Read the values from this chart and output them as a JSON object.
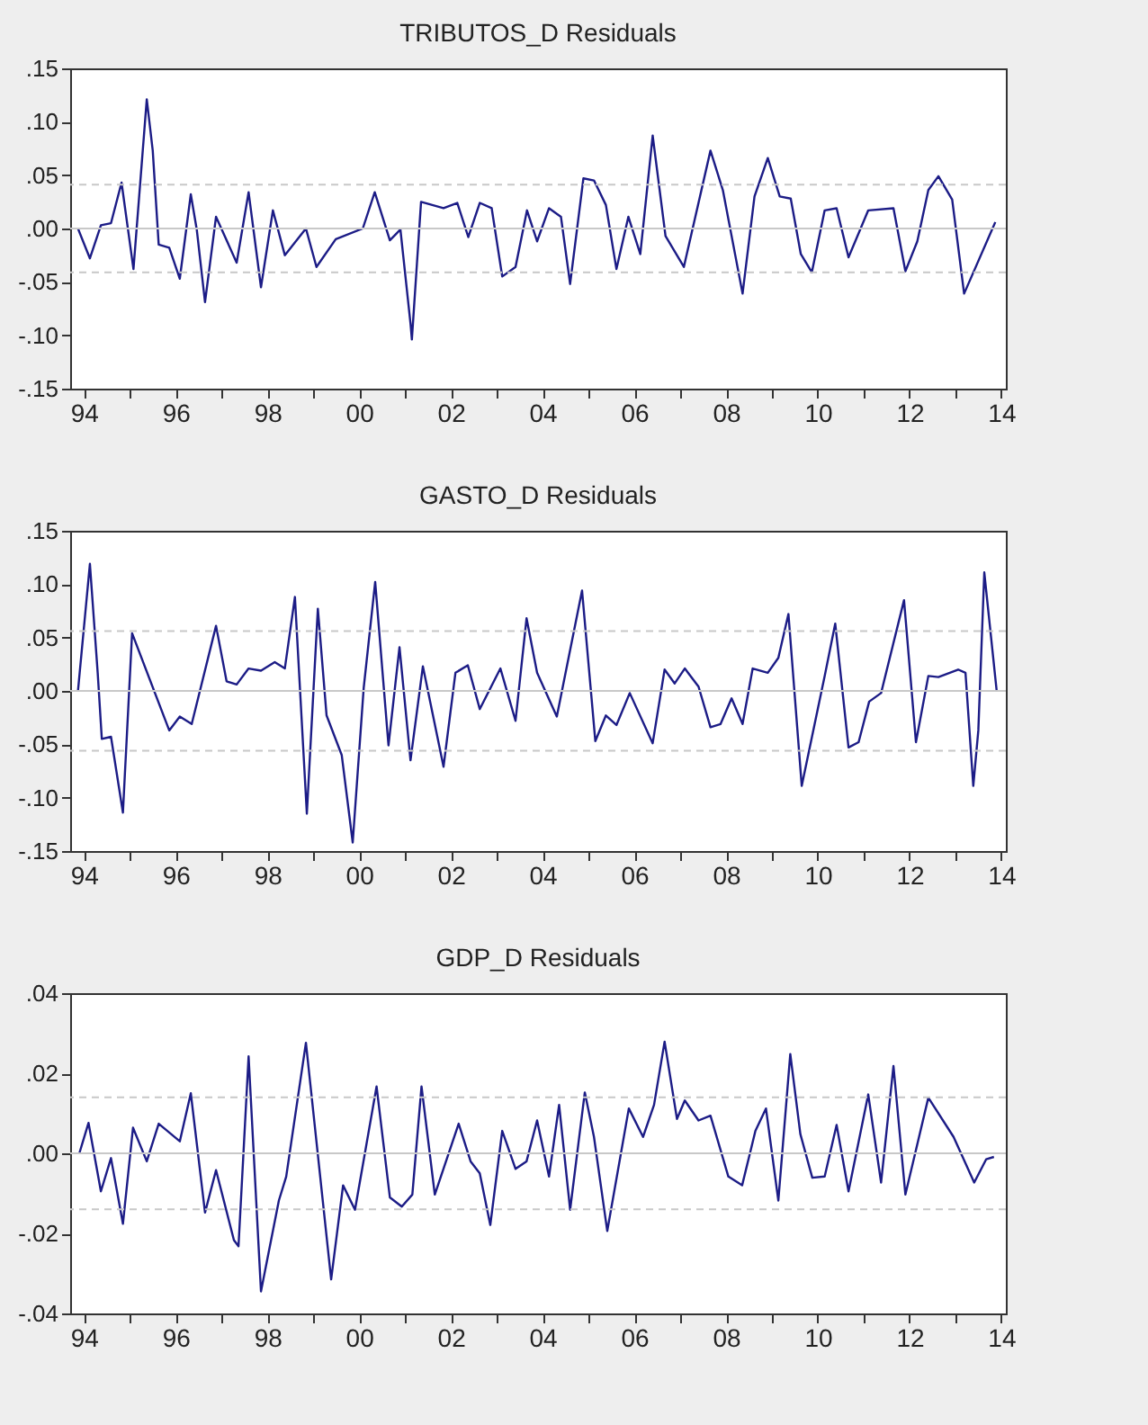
{
  "chart_data": [
    {
      "type": "line",
      "title": "TRIBUTOS_D Residuals",
      "xlim": [
        1993.7,
        2014.1
      ],
      "ylim": [
        -0.15,
        0.15
      ],
      "xticks": [
        {
          "value": 1994,
          "label": "94"
        },
        {
          "value": 1995,
          "label": null
        },
        {
          "value": 1996,
          "label": "96"
        },
        {
          "value": 1997,
          "label": null
        },
        {
          "value": 1998,
          "label": "98"
        },
        {
          "value": 1999,
          "label": null
        },
        {
          "value": 2000,
          "label": "00"
        },
        {
          "value": 2001,
          "label": null
        },
        {
          "value": 2002,
          "label": "02"
        },
        {
          "value": 2003,
          "label": null
        },
        {
          "value": 2004,
          "label": "04"
        },
        {
          "value": 2005,
          "label": null
        },
        {
          "value": 2006,
          "label": "06"
        },
        {
          "value": 2007,
          "label": null
        },
        {
          "value": 2008,
          "label": "08"
        },
        {
          "value": 2009,
          "label": null
        },
        {
          "value": 2010,
          "label": "10"
        },
        {
          "value": 2011,
          "label": null
        },
        {
          "value": 2012,
          "label": "12"
        },
        {
          "value": 2013,
          "label": null
        },
        {
          "value": 2014,
          "label": "14"
        }
      ],
      "yticks": [
        {
          "value": -0.15,
          "label": "-.15"
        },
        {
          "value": -0.1,
          "label": "-.10"
        },
        {
          "value": -0.05,
          "label": "-.05"
        },
        {
          "value": 0,
          "label": ".00"
        },
        {
          "value": 0.05,
          "label": ".05"
        },
        {
          "value": 0.1,
          "label": ".10"
        },
        {
          "value": 0.15,
          "label": ".15"
        }
      ],
      "ref_lines": [
        {
          "axis": "y",
          "value": 0,
          "color": "#c8c8c8",
          "line_style": "solid"
        },
        {
          "axis": "y",
          "value": 0.041,
          "color": "#c8c8c8",
          "line_style": "dashed"
        },
        {
          "axis": "y",
          "value": -0.041,
          "color": "#c8c8c8",
          "line_style": "dashed"
        }
      ],
      "series": [
        {
          "color": "#1c1c86",
          "x": [
            1993.87,
            1994.13,
            1994.37,
            1994.59,
            1994.82,
            1995.08,
            1995.37,
            1995.5,
            1995.63,
            1995.86,
            1996.09,
            1996.33,
            1996.46,
            1996.64,
            1996.88,
            1997.33,
            1997.59,
            1997.86,
            1998.12,
            1998.38,
            1998.84,
            1999.07,
            1999.49,
            2000.08,
            2000.34,
            2000.67,
            2000.9,
            2001.12,
            2001.15,
            2001.35,
            2001.84,
            2002.14,
            2002.38,
            2002.63,
            2002.89,
            2003.12,
            2003.41,
            2003.66,
            2003.88,
            2004.14,
            2004.4,
            2004.6,
            2004.89,
            2005.12,
            2005.38,
            2005.61,
            2005.87,
            2006.13,
            2006.4,
            2006.68,
            2007.08,
            2007.66,
            2007.93,
            2008.36,
            2008.62,
            2008.91,
            2009.17,
            2009.41,
            2009.63,
            2009.87,
            2010.15,
            2010.41,
            2010.67,
            2011.1,
            2011.65,
            2011.91,
            2012.17,
            2012.41,
            2012.63,
            2012.93,
            2013.19,
            2013.87
          ],
          "values": [
            0,
            -0.028,
            0.003,
            0.005,
            0.043,
            -0.038,
            0.121,
            0.073,
            -0.015,
            -0.018,
            -0.047,
            0.032,
            -0.001,
            -0.069,
            0.011,
            -0.032,
            0.034,
            -0.055,
            0.017,
            -0.025,
            0,
            -0.036,
            -0.01,
            0,
            0.034,
            -0.011,
            -0.001,
            -0.089,
            -0.104,
            0.025,
            0.019,
            0.024,
            -0.008,
            0.024,
            0.019,
            -0.045,
            -0.036,
            0.017,
            -0.012,
            0.019,
            0.011,
            -0.052,
            0.047,
            0.045,
            0.022,
            -0.038,
            0.011,
            -0.024,
            0.087,
            -0.007,
            -0.036,
            0.073,
            0.036,
            -0.061,
            0.03,
            0.066,
            0.03,
            0.028,
            -0.024,
            -0.041,
            0.017,
            0.019,
            -0.027,
            0.017,
            0.019,
            -0.04,
            -0.012,
            0.036,
            0.049,
            0.027,
            -0.061,
            0.006
          ]
        }
      ]
    },
    {
      "type": "line",
      "title": "GASTO_D Residuals",
      "xlim": [
        1993.7,
        2014.1
      ],
      "ylim": [
        -0.15,
        0.15
      ],
      "xticks": [
        {
          "value": 1994,
          "label": "94"
        },
        {
          "value": 1995,
          "label": null
        },
        {
          "value": 1996,
          "label": "96"
        },
        {
          "value": 1997,
          "label": null
        },
        {
          "value": 1998,
          "label": "98"
        },
        {
          "value": 1999,
          "label": null
        },
        {
          "value": 2000,
          "label": "00"
        },
        {
          "value": 2001,
          "label": null
        },
        {
          "value": 2002,
          "label": "02"
        },
        {
          "value": 2003,
          "label": null
        },
        {
          "value": 2004,
          "label": "04"
        },
        {
          "value": 2005,
          "label": null
        },
        {
          "value": 2006,
          "label": "06"
        },
        {
          "value": 2007,
          "label": null
        },
        {
          "value": 2008,
          "label": "08"
        },
        {
          "value": 2009,
          "label": null
        },
        {
          "value": 2010,
          "label": "10"
        },
        {
          "value": 2011,
          "label": null
        },
        {
          "value": 2012,
          "label": "12"
        },
        {
          "value": 2013,
          "label": null
        },
        {
          "value": 2014,
          "label": "14"
        }
      ],
      "yticks": [
        {
          "value": -0.15,
          "label": "-.15"
        },
        {
          "value": -0.1,
          "label": "-.10"
        },
        {
          "value": -0.05,
          "label": "-.05"
        },
        {
          "value": 0,
          "label": ".00"
        },
        {
          "value": 0.05,
          "label": ".05"
        },
        {
          "value": 0.1,
          "label": ".10"
        },
        {
          "value": 0.15,
          "label": ".15"
        }
      ],
      "ref_lines": [
        {
          "axis": "y",
          "value": 0,
          "color": "#c8c8c8",
          "line_style": "solid"
        },
        {
          "axis": "y",
          "value": 0.056,
          "color": "#c8c8c8",
          "line_style": "dashed"
        },
        {
          "axis": "y",
          "value": -0.056,
          "color": "#c8c8c8",
          "line_style": "dashed"
        }
      ],
      "series": [
        {
          "color": "#1c1c86",
          "x": [
            1993.87,
            1994.13,
            1994.3,
            1994.39,
            1994.59,
            1994.85,
            1995.05,
            1995.86,
            1996.09,
            1996.35,
            1996.88,
            1997.11,
            1997.33,
            1997.59,
            1997.86,
            1998.16,
            1998.38,
            1998.6,
            1998.86,
            1999.1,
            1999.29,
            1999.62,
            1999.86,
            2000.1,
            2000.35,
            2000.64,
            2000.88,
            2001.12,
            2001.39,
            2001.84,
            2002.1,
            2002.37,
            2002.63,
            2003.08,
            2003.41,
            2003.65,
            2003.88,
            2004.31,
            2004.86,
            2005.15,
            2005.38,
            2005.61,
            2005.9,
            2006.4,
            2006.66,
            2006.88,
            2007.1,
            2007.4,
            2007.66,
            2007.88,
            2008.12,
            2008.36,
            2008.58,
            2008.91,
            2009.14,
            2009.36,
            2009.65,
            2010.15,
            2010.38,
            2010.67,
            2010.89,
            2011.12,
            2011.38,
            2011.88,
            2012.14,
            2012.41,
            2012.63,
            2013.06,
            2013.22,
            2013.39,
            2013.5,
            2013.63,
            2013.9
          ],
          "values": [
            0,
            0.119,
            0.017,
            -0.045,
            -0.043,
            -0.114,
            0.054,
            -0.037,
            -0.024,
            -0.031,
            0.061,
            0.009,
            0.006,
            0.021,
            0.019,
            0.027,
            0.021,
            0.088,
            -0.115,
            0.077,
            -0.023,
            -0.06,
            -0.142,
            0.003,
            0.102,
            -0.051,
            0.041,
            -0.065,
            0.023,
            -0.071,
            0.017,
            0.024,
            -0.017,
            0.021,
            -0.028,
            0.068,
            0.017,
            -0.024,
            0.094,
            -0.047,
            -0.023,
            -0.032,
            -0.002,
            -0.049,
            0.02,
            0.007,
            0.021,
            0.004,
            -0.034,
            -0.031,
            -0.007,
            -0.031,
            0.021,
            0.017,
            0.031,
            0.072,
            -0.089,
            0.014,
            0.063,
            -0.053,
            -0.048,
            -0.01,
            -0.002,
            0.085,
            -0.048,
            0.014,
            0.013,
            0.02,
            0.017,
            -0.089,
            -0.037,
            0.111,
            0
          ]
        }
      ]
    },
    {
      "type": "line",
      "title": "GDP_D Residuals",
      "xlim": [
        1993.7,
        2014.1
      ],
      "ylim": [
        -0.04,
        0.04
      ],
      "xticks": [
        {
          "value": 1994,
          "label": "94"
        },
        {
          "value": 1995,
          "label": null
        },
        {
          "value": 1996,
          "label": "96"
        },
        {
          "value": 1997,
          "label": null
        },
        {
          "value": 1998,
          "label": "98"
        },
        {
          "value": 1999,
          "label": null
        },
        {
          "value": 2000,
          "label": "00"
        },
        {
          "value": 2001,
          "label": null
        },
        {
          "value": 2002,
          "label": "02"
        },
        {
          "value": 2003,
          "label": null
        },
        {
          "value": 2004,
          "label": "04"
        },
        {
          "value": 2005,
          "label": null
        },
        {
          "value": 2006,
          "label": "06"
        },
        {
          "value": 2007,
          "label": null
        },
        {
          "value": 2008,
          "label": "08"
        },
        {
          "value": 2009,
          "label": null
        },
        {
          "value": 2010,
          "label": "10"
        },
        {
          "value": 2011,
          "label": null
        },
        {
          "value": 2012,
          "label": "12"
        },
        {
          "value": 2013,
          "label": null
        },
        {
          "value": 2014,
          "label": "14"
        }
      ],
      "yticks": [
        {
          "value": -0.04,
          "label": "-.04"
        },
        {
          "value": -0.02,
          "label": "-.02"
        },
        {
          "value": 0,
          "label": ".00"
        },
        {
          "value": 0.02,
          "label": ".02"
        },
        {
          "value": 0.04,
          "label": ".04"
        }
      ],
      "ref_lines": [
        {
          "axis": "y",
          "value": 0,
          "color": "#c8c8c8",
          "line_style": "solid"
        },
        {
          "axis": "y",
          "value": 0.014,
          "color": "#c8c8c8",
          "line_style": "dashed"
        },
        {
          "axis": "y",
          "value": -0.014,
          "color": "#c8c8c8",
          "line_style": "dashed"
        }
      ],
      "series": [
        {
          "color": "#1c1c86",
          "x": [
            1993.9,
            1994.1,
            1994.37,
            1994.59,
            1994.85,
            1995.07,
            1995.37,
            1995.63,
            1996.09,
            1996.33,
            1996.64,
            1996.88,
            1997.27,
            1997.37,
            1997.59,
            1997.86,
            1998.25,
            1998.41,
            1998.84,
            1999.39,
            1999.65,
            1999.91,
            2000.38,
            2000.67,
            2000.93,
            2001.16,
            2001.36,
            2001.65,
            2002.17,
            2002.43,
            2002.63,
            2002.86,
            2003.12,
            2003.41,
            2003.65,
            2003.88,
            2004.14,
            2004.36,
            2004.6,
            2004.92,
            2005.12,
            2005.41,
            2005.88,
            2006.19,
            2006.43,
            2006.66,
            2006.93,
            2007.1,
            2007.4,
            2007.66,
            2008.05,
            2008.35,
            2008.64,
            2008.87,
            2009.14,
            2009.4,
            2009.62,
            2009.88,
            2010.15,
            2010.41,
            2010.67,
            2011.1,
            2011.38,
            2011.65,
            2011.91,
            2012.41,
            2012.96,
            2013.41,
            2013.67,
            2013.84
          ],
          "values": [
            0,
            0.0076,
            -0.0095,
            -0.0012,
            -0.0176,
            0.0064,
            -0.002,
            0.0074,
            0.003,
            0.015,
            -0.0148,
            -0.0042,
            -0.0217,
            -0.0232,
            0.0242,
            -0.0345,
            -0.0118,
            -0.0058,
            0.0276,
            -0.0315,
            -0.008,
            -0.0141,
            0.0167,
            -0.011,
            -0.0133,
            -0.0103,
            0.0167,
            -0.0103,
            0.0074,
            -0.002,
            -0.005,
            -0.0179,
            0.0056,
            -0.0039,
            -0.002,
            0.0082,
            -0.0058,
            0.0121,
            -0.0141,
            0.0152,
            0.0041,
            -0.0194,
            0.0112,
            0.0041,
            0.0121,
            0.0279,
            0.0086,
            0.0132,
            0.0082,
            0.0094,
            -0.0058,
            -0.008,
            0.0056,
            0.0112,
            -0.0118,
            0.0248,
            0.0048,
            -0.0061,
            -0.0058,
            0.0071,
            -0.0095,
            0.0147,
            -0.0073,
            0.0218,
            -0.0103,
            0.0139,
            0.0041,
            -0.0073,
            -0.0015,
            -0.0009
          ]
        }
      ]
    }
  ]
}
